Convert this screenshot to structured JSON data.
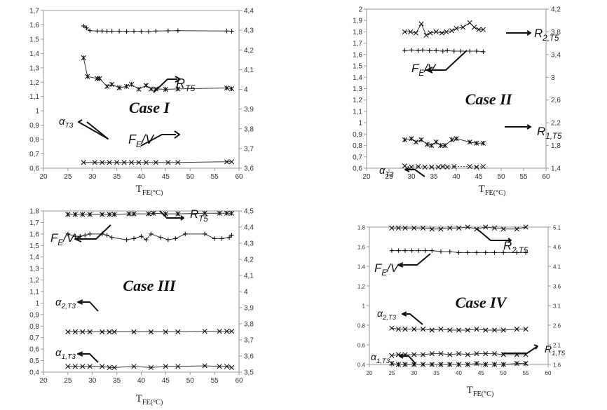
{
  "chart_data": [
    {
      "type": "line",
      "title": "Case I",
      "xlabel": "T_FE(°C)",
      "xlim": [
        20,
        60
      ],
      "xticks": [
        "20",
        "25",
        "30",
        "35",
        "40",
        "45",
        "50",
        "55",
        "60"
      ],
      "ylim_left": [
        0.6,
        1.7
      ],
      "yticks_left": [
        "0,6",
        "0,7",
        "0,8",
        "0,9",
        "1",
        "1,1",
        "1,2",
        "1,3",
        "1,4",
        "1,5",
        "1,6",
        "1,7"
      ],
      "ylim_right": [
        3.6,
        4.4
      ],
      "yticks_right": [
        "3,6",
        "3,7",
        "3,8",
        "3,9",
        "4",
        "4,1",
        "4,2",
        "4,3",
        "4,4"
      ],
      "grid": false,
      "series": [
        {
          "name": "F_E/V",
          "axis": "right",
          "marker": "plus",
          "x": [
            28.2,
            28.8,
            29.5,
            31,
            32,
            33,
            34,
            35.5,
            37,
            38.5,
            40,
            41.5,
            43,
            45.5,
            47.5,
            57.5,
            58.5
          ],
          "y": [
            4.322,
            4.312,
            4.298,
            4.296,
            4.296,
            4.295,
            4.295,
            4.295,
            4.294,
            4.295,
            4.294,
            4.293,
            4.296,
            4.297,
            4.298,
            4.296,
            4.295
          ]
        },
        {
          "name": "R_T5",
          "axis": "right",
          "marker": "asterisk",
          "x": [
            28.2,
            29,
            31,
            31.5,
            33,
            34,
            35.5,
            37,
            38,
            39.5,
            41,
            42,
            43,
            45,
            47.5,
            57.5,
            58.5
          ],
          "y": [
            4.16,
            4.065,
            4.055,
            4.055,
            4.015,
            4.025,
            4.008,
            4.015,
            4.025,
            4.001,
            4.02,
            4.002,
            4.002,
            4.0,
            4.002,
            4.007,
            4.003
          ]
        },
        {
          "name": "α_T3",
          "axis": "left",
          "marker": "x",
          "x": [
            28.2,
            30.5,
            32,
            33.5,
            35,
            36.5,
            38,
            39.5,
            41,
            43,
            45.5,
            47.5,
            57.5,
            58.5
          ],
          "y": [
            0.64,
            0.64,
            0.64,
            0.64,
            0.64,
            0.64,
            0.64,
            0.64,
            0.64,
            0.64,
            0.64,
            0.64,
            0.645,
            0.645
          ]
        }
      ]
    },
    {
      "type": "line",
      "title": "Case II",
      "xlabel": "T_FE(°C)",
      "xlim": [
        20,
        60
      ],
      "xticks": [
        "20",
        "25",
        "30",
        "35",
        "40",
        "45",
        "50",
        "55",
        "60"
      ],
      "ylim_left": [
        0.6,
        2.0
      ],
      "yticks_left": [
        "0,6",
        "0,7",
        "0,8",
        "0,9",
        "1",
        "1,1",
        "1,2",
        "1,3",
        "1,4",
        "1,5",
        "1,6",
        "1,7",
        "1,8",
        "1,9",
        "2"
      ],
      "ylim_right": [
        1.4,
        4.4
      ],
      "yticks_right": [
        "1,4",
        "1,8",
        "2,2",
        "2,6",
        "3",
        "3,4",
        "3,8",
        "4,2"
      ],
      "grid": false,
      "series": [
        {
          "name": "R_2,T5",
          "axis": "left",
          "marker": "x",
          "x": [
            28.5,
            29.8,
            31,
            32.2,
            33.3,
            34.2,
            35.5,
            36.8,
            37.8,
            39,
            40,
            41.5,
            43,
            44,
            45,
            46
          ],
          "y": [
            1.8,
            1.8,
            1.79,
            1.87,
            1.77,
            1.79,
            1.8,
            1.79,
            1.8,
            1.81,
            1.83,
            1.84,
            1.88,
            1.84,
            1.82,
            1.82
          ]
        },
        {
          "name": "F_E/V",
          "axis": "left",
          "marker": "plus",
          "x": [
            28.5,
            30,
            31.5,
            32.5,
            34,
            35.5,
            37,
            38,
            39.5,
            41,
            43,
            44.5,
            46
          ],
          "y": [
            1.635,
            1.64,
            1.635,
            1.64,
            1.635,
            1.635,
            1.63,
            1.635,
            1.63,
            1.63,
            1.63,
            1.63,
            1.625
          ]
        },
        {
          "name": "R_1,T5",
          "axis": "left",
          "marker": "asterisk",
          "x": [
            28.5,
            30,
            31,
            32.2,
            33.5,
            34.5,
            35.5,
            36.5,
            37.5,
            39,
            40,
            43,
            44.5,
            46
          ],
          "y": [
            0.85,
            0.86,
            0.83,
            0.85,
            0.81,
            0.8,
            0.83,
            0.8,
            0.8,
            0.85,
            0.86,
            0.83,
            0.82,
            0.82
          ]
        },
        {
          "name": "α_T3",
          "axis": "left",
          "marker": "x",
          "dashed": true,
          "x": [
            28.5,
            30,
            31.5,
            33,
            34.5,
            36,
            37,
            38,
            39.5,
            43,
            44.5,
            46
          ],
          "y": [
            0.62,
            0.61,
            0.615,
            0.61,
            0.61,
            0.61,
            0.615,
            0.61,
            0.615,
            0.615,
            0.61,
            0.615
          ]
        }
      ]
    },
    {
      "type": "line",
      "title": "Case III",
      "xlabel": "T_FE(°C)",
      "xlim": [
        20,
        60
      ],
      "xticks": [
        "20",
        "25",
        "30",
        "35",
        "40",
        "45",
        "50",
        "55",
        "60"
      ],
      "ylim_left": [
        0.4,
        1.8
      ],
      "yticks_left": [
        "0,4",
        "0,5",
        "0,6",
        "0,7",
        "0,8",
        "0,9",
        "1",
        "1,1",
        "1,2",
        "1,3",
        "1,4",
        "1,5",
        "1,6",
        "1,7",
        "1,8"
      ],
      "ylim_right": [
        3.5,
        4.5
      ],
      "yticks_right": [
        "3,5",
        "3,6",
        "3,7",
        "3,8",
        "3,9",
        "4",
        "4,1",
        "4,2",
        "4,3",
        "4,4",
        "4,5"
      ],
      "grid": false,
      "series": [
        {
          "name": "R_T5",
          "axis": "left",
          "marker": "asterisk",
          "x": [
            25,
            26.5,
            28,
            29.5,
            32,
            33.5,
            34.5,
            37.5,
            38.5,
            41.5,
            42.5,
            45,
            47.5,
            53,
            56,
            57.5,
            58.5
          ],
          "y": [
            1.77,
            1.77,
            1.77,
            1.77,
            1.77,
            1.77,
            1.77,
            1.775,
            1.775,
            1.775,
            1.78,
            1.775,
            1.775,
            1.78,
            1.78,
            1.78,
            1.78
          ]
        },
        {
          "name": "F_E/V",
          "axis": "left",
          "marker": "plus",
          "x": [
            25,
            26.5,
            27.5,
            28.5,
            29.5,
            32,
            33,
            34,
            37,
            38.5,
            40,
            41,
            42,
            44,
            45.5,
            47,
            49,
            53,
            55,
            56.5,
            58,
            58.5
          ],
          "y": [
            1.6,
            1.58,
            1.58,
            1.59,
            1.6,
            1.6,
            1.59,
            1.57,
            1.55,
            1.56,
            1.58,
            1.55,
            1.6,
            1.57,
            1.55,
            1.56,
            1.6,
            1.6,
            1.56,
            1.56,
            1.57,
            1.59
          ]
        },
        {
          "name": "α_2,T3",
          "axis": "left",
          "marker": "x",
          "x": [
            25,
            26.5,
            28,
            29.5,
            32,
            33.5,
            34.5,
            38.5,
            42,
            45,
            47.5,
            53,
            56,
            57.5,
            58.5
          ],
          "y": [
            0.75,
            0.75,
            0.75,
            0.75,
            0.75,
            0.75,
            0.75,
            0.75,
            0.75,
            0.75,
            0.75,
            0.755,
            0.755,
            0.755,
            0.755
          ]
        },
        {
          "name": "α_1,T3",
          "axis": "left",
          "marker": "x",
          "x": [
            25,
            26.5,
            28,
            29.5,
            32,
            33.5,
            34.5,
            38.5,
            42,
            45,
            47.5,
            53,
            56,
            57.5,
            58.5
          ],
          "y": [
            0.45,
            0.45,
            0.45,
            0.45,
            0.45,
            0.44,
            0.44,
            0.45,
            0.44,
            0.45,
            0.45,
            0.455,
            0.45,
            0.45,
            0.44
          ]
        }
      ]
    },
    {
      "type": "line",
      "title": "Case IV",
      "xlabel": "T_FE(°C)",
      "xlim": [
        20,
        60
      ],
      "xticks": [
        "20",
        "25",
        "30",
        "35",
        "40",
        "45",
        "50",
        "55",
        "60"
      ],
      "ylim_left": [
        0.4,
        1.8
      ],
      "yticks_left": [
        "0.4",
        "0.6",
        "0.8",
        "1",
        "1.2",
        "1.4",
        "1.6",
        "1.8"
      ],
      "ylim_right": [
        1.6,
        5.1
      ],
      "yticks_right": [
        "1.6",
        "2.1",
        "2.6",
        "3.1",
        "3.6",
        "4.1",
        "4.6",
        "5.1"
      ],
      "grid": false,
      "series": [
        {
          "name": "R_2,T5",
          "axis": "left",
          "marker": "x",
          "x": [
            25,
            26.5,
            28,
            30,
            32,
            34,
            36,
            38,
            40,
            42,
            44,
            46,
            48,
            50,
            53,
            55
          ],
          "y": [
            1.79,
            1.79,
            1.79,
            1.79,
            1.79,
            1.78,
            1.78,
            1.79,
            1.79,
            1.8,
            1.78,
            1.8,
            1.79,
            1.78,
            1.78,
            1.8
          ]
        },
        {
          "name": "F_E/V",
          "axis": "left",
          "marker": "plus",
          "x": [
            25,
            26.5,
            28,
            29.5,
            31,
            32.5,
            34,
            36,
            38,
            40,
            42,
            44,
            46,
            48,
            50,
            53,
            55
          ],
          "y": [
            1.56,
            1.56,
            1.56,
            1.56,
            1.56,
            1.56,
            1.56,
            1.55,
            1.55,
            1.54,
            1.54,
            1.54,
            1.54,
            1.54,
            1.54,
            1.54,
            1.54
          ]
        },
        {
          "name": "α_2,T3",
          "axis": "left",
          "marker": "x",
          "x": [
            25,
            26.5,
            28,
            30,
            32,
            34,
            36,
            38,
            40,
            42,
            44,
            46,
            48,
            50,
            53,
            55
          ],
          "y": [
            0.77,
            0.76,
            0.76,
            0.76,
            0.76,
            0.75,
            0.76,
            0.75,
            0.75,
            0.75,
            0.76,
            0.75,
            0.75,
            0.75,
            0.76,
            0.76
          ]
        },
        {
          "name": "R_1,T5",
          "axis": "left",
          "marker": "x",
          "x": [
            25,
            26.5,
            28,
            30,
            32,
            34,
            36,
            38,
            40,
            42,
            44,
            46,
            48,
            50,
            53,
            55
          ],
          "y": [
            0.49,
            0.5,
            0.5,
            0.5,
            0.5,
            0.51,
            0.51,
            0.5,
            0.51,
            0.5,
            0.51,
            0.51,
            0.51,
            0.5,
            0.5,
            0.5
          ]
        },
        {
          "name": "α_1,T3",
          "axis": "left",
          "marker": "asterisk",
          "x": [
            25,
            26.5,
            28,
            30,
            32,
            34,
            36,
            38,
            40,
            42,
            44,
            46,
            48,
            50,
            53,
            55
          ],
          "y": [
            0.41,
            0.4,
            0.4,
            0.4,
            0.4,
            0.4,
            0.4,
            0.4,
            0.4,
            0.4,
            0.41,
            0.4,
            0.4,
            0.4,
            0.41,
            0.41
          ]
        }
      ]
    }
  ],
  "annotations": [
    {
      "text": "F_E/V"
    },
    {
      "text": "R_T5"
    },
    {
      "text": "α_T3"
    },
    {
      "text": "R_2,T5"
    },
    {
      "text": "F_E/V"
    },
    {
      "text": "R_1,T5"
    },
    {
      "text": "α_T3"
    },
    {
      "text": "R_T5"
    },
    {
      "text": "F_E/V"
    },
    {
      "text": "α_2,T3"
    },
    {
      "text": "α_1,T3"
    },
    {
      "text": "R_2,T5"
    },
    {
      "text": "F_E/V"
    },
    {
      "text": "α_2,T3"
    },
    {
      "text": "R_1,T5"
    },
    {
      "text": "α_1,T3"
    }
  ]
}
